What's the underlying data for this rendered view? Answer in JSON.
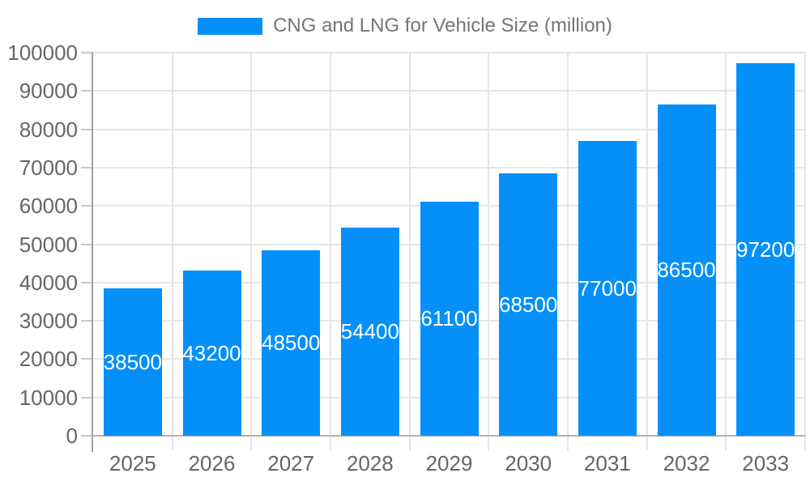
{
  "legend": {
    "label": "CNG and LNG for Vehicle Size (million)"
  },
  "chart_data": {
    "type": "bar",
    "title": "CNG and LNG for Vehicle Size (million)",
    "categories": [
      "2025",
      "2026",
      "2027",
      "2028",
      "2029",
      "2030",
      "2031",
      "2032",
      "2033"
    ],
    "values": [
      38500,
      43200,
      48500,
      54400,
      61100,
      68500,
      77000,
      86500,
      97200
    ],
    "series": [
      {
        "name": "CNG and LNG for Vehicle Size (million)",
        "values": [
          38500,
          43200,
          48500,
          54400,
          61100,
          68500,
          77000,
          86500,
          97200
        ]
      }
    ],
    "xlabel": "",
    "ylabel": "",
    "ylim": [
      0,
      100000
    ],
    "y_ticks": [
      0,
      10000,
      20000,
      30000,
      40000,
      50000,
      60000,
      70000,
      80000,
      90000,
      100000
    ],
    "y_tick_labels": [
      "0",
      "10000",
      "20000",
      "30000",
      "40000",
      "50000",
      "60000",
      "70000",
      "80000",
      "90000",
      "100000"
    ],
    "grid": true,
    "legend_position": "top-center",
    "value_label_position": "inside-center",
    "colors": {
      "bar": "#0590f9",
      "value_label": "#ffffff",
      "axis_label": "#666666",
      "legend_label": "#757575",
      "gridline": "#e6e6e6",
      "axis_line_y": "#9e9e9e",
      "axis_line_x": "#b3b3b3",
      "tick": "#c9c9c9"
    }
  }
}
